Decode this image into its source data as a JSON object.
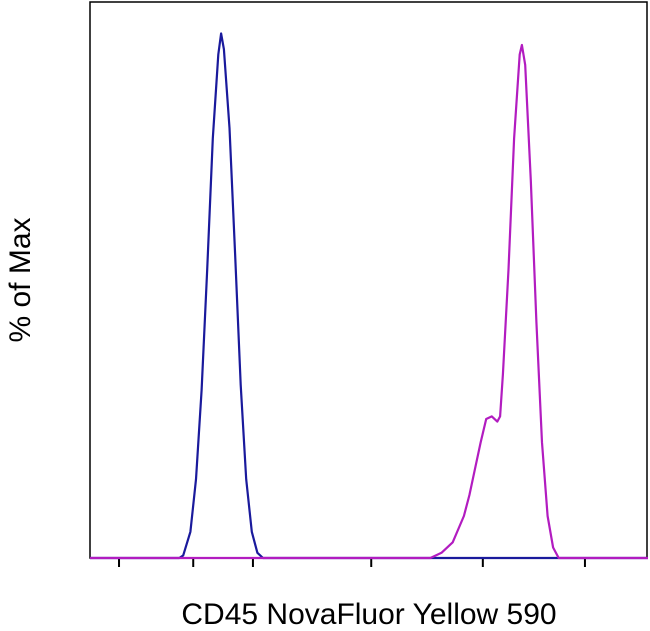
{
  "chart_data": {
    "type": "line",
    "xlabel": "CD45 NovaFluor Yellow 590",
    "ylabel": "% of Max",
    "xlim": [
      0,
      100
    ],
    "ylim": [
      0,
      106
    ],
    "xticks": [
      5.2,
      18.5,
      29.2,
      50.4,
      70.4,
      88.7
    ],
    "series": [
      {
        "color": "#1a1a9c",
        "x": [
          0,
          16,
          16.7,
          18,
          19,
          20,
          21,
          22,
          23,
          23.5,
          24,
          25,
          26,
          27,
          28,
          29,
          30,
          31,
          100
        ],
        "values": [
          0,
          0,
          0.5,
          5,
          15,
          32,
          55,
          80,
          96,
          100,
          97,
          82,
          58,
          33,
          15,
          5,
          1,
          0,
          0
        ]
      },
      {
        "color": "#b21cc0",
        "x": [
          0,
          61,
          63,
          65,
          67,
          68,
          69,
          70,
          71,
          72,
          73,
          73.5,
          74,
          75,
          76,
          77,
          77.4,
          78,
          79,
          80,
          81,
          82,
          83,
          84,
          100
        ],
        "values": [
          0,
          0,
          1,
          3,
          8,
          12,
          17,
          22,
          26.5,
          27,
          26,
          27,
          35,
          55,
          80,
          96,
          97.8,
          94,
          72,
          45,
          22,
          8,
          2,
          0,
          0
        ]
      }
    ]
  }
}
